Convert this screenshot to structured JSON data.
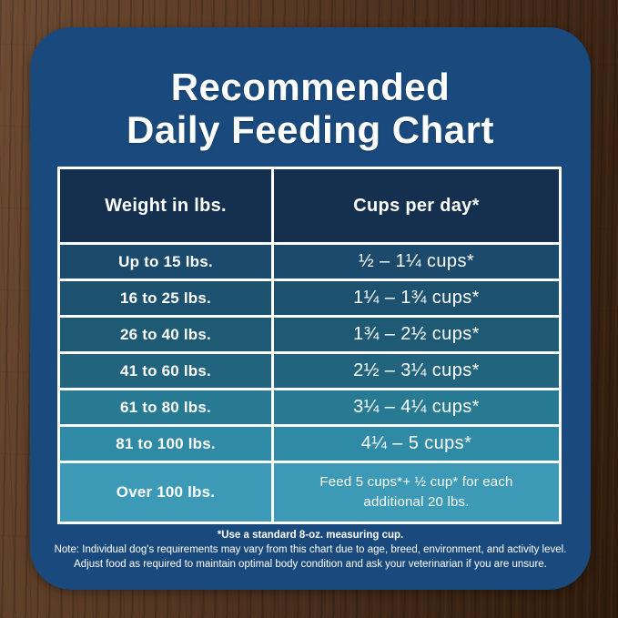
{
  "title": {
    "line1": "Recommended",
    "line2": "Daily Feeding Chart"
  },
  "table": {
    "headers": {
      "weight": "Weight in lbs.",
      "cups": "Cups per day*"
    },
    "rows": [
      {
        "weight": "Up to 15 lbs.",
        "cups": "½ – 1¼ cups*",
        "color": "#1b4a6c"
      },
      {
        "weight": "16 to 25 lbs.",
        "cups": "1¼ – 1¾ cups*",
        "color": "#1d5170"
      },
      {
        "weight": "26 to 40 lbs.",
        "cups": "1¾ – 2½ cups*",
        "color": "#1f5a74"
      },
      {
        "weight": "41 to 60 lbs.",
        "cups": "2½ – 3¼ cups*",
        "color": "#22647d"
      },
      {
        "weight": "61 to 80 lbs.",
        "cups": "3¼ – 4¼ cups*",
        "color": "#287a92"
      },
      {
        "weight": "81 to 100 lbs.",
        "cups": "4¼ – 5 cups*",
        "color": "#2f8aa5"
      },
      {
        "weight": "Over 100 lbs.",
        "cups": "Feed 5 cups*+ ½ cup* for each additional 20 lbs.",
        "color": "#3c9ab6"
      }
    ]
  },
  "footnotes": {
    "line1": "*Use a standard 8-oz. measuring cup.",
    "line2": "Note: Individual dog's requirements may vary from this chart due to age, breed, environment, and activity level.",
    "line3": "Adjust food as required to maintain optimal body condition and ask your veterinarian if you are unsure."
  },
  "colors": {
    "card_background": "#1a4a7d",
    "header_row": "#14304e",
    "cell_border": "#ffffff",
    "text": "#ffffff"
  },
  "chart_data": {
    "type": "table",
    "title": "Recommended Daily Feeding Chart",
    "columns": [
      "Weight in lbs.",
      "Cups per day*"
    ],
    "rows": [
      [
        "Up to 15 lbs.",
        "½ – 1¼ cups*"
      ],
      [
        "16 to 25 lbs.",
        "1¼ – 1¾ cups*"
      ],
      [
        "26 to 40 lbs.",
        "1¾ – 2½ cups*"
      ],
      [
        "41 to 60 lbs.",
        "2½ – 3¼ cups*"
      ],
      [
        "61 to 80 lbs.",
        "3¼ – 4¼ cups*"
      ],
      [
        "81 to 100 lbs.",
        "4¼ – 5 cups*"
      ],
      [
        "Over 100 lbs.",
        "Feed 5 cups*+ ½ cup* for each additional 20 lbs."
      ]
    ],
    "notes": [
      "*Use a standard 8-oz. measuring cup.",
      "Note: Individual dog's requirements may vary from this chart due to age, breed, environment, and activity level.",
      "Adjust food as required to maintain optimal body condition and ask your veterinarian if you are unsure."
    ]
  }
}
